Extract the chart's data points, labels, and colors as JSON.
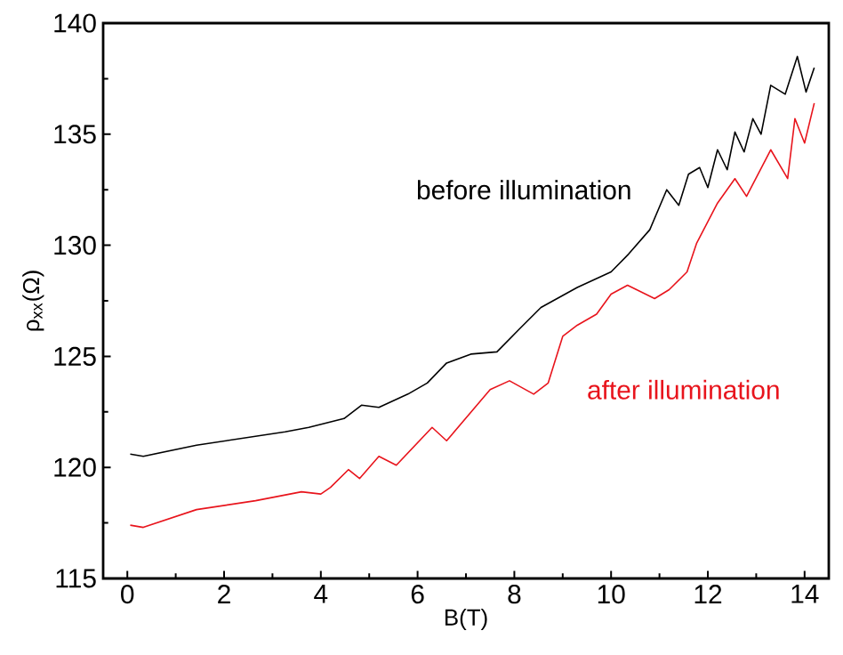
{
  "chart_data": {
    "type": "line",
    "xlabel": "B(T)",
    "ylabel": "ρ$_{xx}$(Ω)",
    "xlim": [
      -0.5,
      14.5
    ],
    "ylim": [
      115,
      140
    ],
    "xticks": [
      0,
      2,
      4,
      6,
      8,
      10,
      12,
      14
    ],
    "yticks": [
      115,
      120,
      125,
      130,
      135,
      140
    ],
    "grid": false,
    "legend": false,
    "marker": "none",
    "line_style": "solid",
    "series": [
      {
        "name": "before illumination",
        "color": "#000000",
        "x": [
          0.06,
          0.33,
          1.43,
          3.26,
          3.75,
          4.48,
          4.84,
          5.2,
          5.8,
          6.2,
          6.6,
          7.1,
          7.64,
          8.09,
          8.55,
          9.3,
          10.0,
          10.36,
          10.8,
          11.15,
          11.4,
          11.6,
          11.83,
          12.0,
          12.2,
          12.4,
          12.56,
          12.75,
          12.93,
          13.1,
          13.3,
          13.6,
          13.85,
          14.03,
          14.2
        ],
        "values": [
          120.6,
          120.5,
          121.0,
          121.6,
          121.8,
          122.2,
          122.8,
          122.7,
          123.3,
          123.8,
          124.7,
          125.1,
          125.2,
          126.2,
          127.2,
          128.1,
          128.8,
          129.6,
          130.7,
          132.5,
          131.8,
          133.2,
          133.5,
          132.6,
          134.3,
          133.4,
          135.1,
          134.2,
          135.7,
          135.0,
          137.2,
          136.8,
          138.5,
          136.9,
          138.0
        ]
      },
      {
        "name": "after illumination",
        "color": "#e8141c",
        "x": [
          0.06,
          0.33,
          1.43,
          2.65,
          3.6,
          4.0,
          4.2,
          4.57,
          4.8,
          5.2,
          5.56,
          6.3,
          6.6,
          7.5,
          7.9,
          8.4,
          8.7,
          9.0,
          9.3,
          9.7,
          10.0,
          10.34,
          10.9,
          11.2,
          11.57,
          11.77,
          12.2,
          12.56,
          12.8,
          13.3,
          13.65,
          13.8,
          14.0,
          14.2
        ],
        "values": [
          117.4,
          117.3,
          118.1,
          118.5,
          118.9,
          118.8,
          119.1,
          119.9,
          119.5,
          120.5,
          120.1,
          121.8,
          121.2,
          123.5,
          123.9,
          123.3,
          123.8,
          125.9,
          126.4,
          126.9,
          127.8,
          128.2,
          127.6,
          128.0,
          128.8,
          130.1,
          131.9,
          133.0,
          132.2,
          134.3,
          133.0,
          135.7,
          134.6,
          136.4
        ]
      }
    ]
  }
}
